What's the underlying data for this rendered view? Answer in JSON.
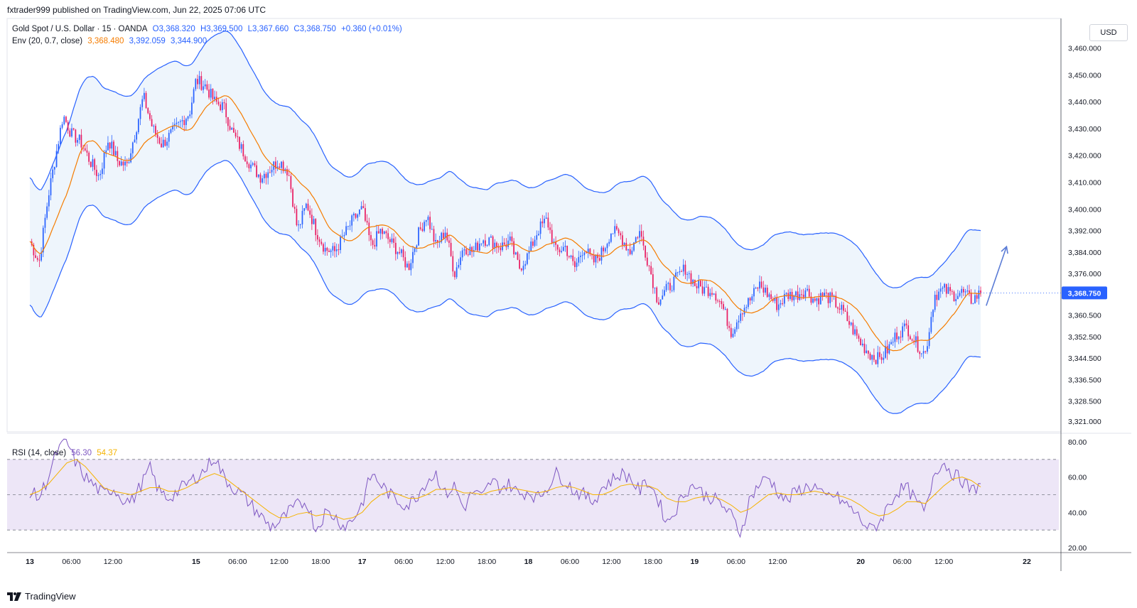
{
  "header": {
    "publish_line": "fxtrader999 published on TradingView.com, Jun 22, 2025 07:06 UTC"
  },
  "legend_main": {
    "symbol": "Gold Spot / U.S. Dollar · 15 · OANDA",
    "open": "O3,368.320",
    "high": "H3,369.500",
    "low": "L3,367.660",
    "close": "C3,368.750",
    "change": "+0.360 (+0.01%)"
  },
  "legend_env": {
    "label": "Env (20, 0.7, close)",
    "basis": "3,368.480",
    "upper": "3,392.059",
    "lower": "3,344.900"
  },
  "legend_rsi": {
    "label": "RSI (14, close)",
    "rsi": "56.30",
    "ma": "54.37"
  },
  "price_axis": {
    "currency": "USD",
    "last_price_label": "3,368.750",
    "last_price_color": "#2962ff"
  },
  "footer": {
    "brand": "TradingView"
  },
  "colors": {
    "up_candle": "#2962ff",
    "down_candle": "#e91e63",
    "envelope_line": "#2962ff",
    "envelope_fill": "#eef5fc",
    "basis_line": "#f57c00",
    "rsi_line": "#7e57c2",
    "rsi_ma": "#f5b300",
    "rsi_band": "#ede6f7"
  },
  "chart_data": [
    {
      "type": "candlestick",
      "title": "Gold Spot / U.S. Dollar · 15 · OANDA",
      "ylim": [
        3317,
        3471
      ],
      "y_ticks": [
        {
          "value": 3460,
          "label": "3,460.000"
        },
        {
          "value": 3450,
          "label": "3,450.000"
        },
        {
          "value": 3440,
          "label": "3,440.000"
        },
        {
          "value": 3430,
          "label": "3,430.000"
        },
        {
          "value": 3420,
          "label": "3,420.000"
        },
        {
          "value": 3410,
          "label": "3,410.000"
        },
        {
          "value": 3400,
          "label": "3,400.000"
        },
        {
          "value": 3392,
          "label": "3,392.000"
        },
        {
          "value": 3384,
          "label": "3,384.000"
        },
        {
          "value": 3376,
          "label": "3,376.000"
        },
        {
          "value": 3360.5,
          "label": "3,360.500"
        },
        {
          "value": 3352.5,
          "label": "3,352.500"
        },
        {
          "value": 3344.5,
          "label": "3,344.500"
        },
        {
          "value": 3336.5,
          "label": "3,336.500"
        },
        {
          "value": 3328.5,
          "label": "3,328.500"
        },
        {
          "value": 3321,
          "label": "3,321.000"
        }
      ],
      "x_ticks": [
        {
          "t": 0.0,
          "label": "13"
        },
        {
          "t": 0.045,
          "label": "06:00"
        },
        {
          "t": 0.09,
          "label": "12:00"
        },
        {
          "t": 0.18,
          "label": "15"
        },
        {
          "t": 0.225,
          "label": "06:00"
        },
        {
          "t": 0.27,
          "label": "12:00"
        },
        {
          "t": 0.315,
          "label": "18:00"
        },
        {
          "t": 0.36,
          "label": "17"
        },
        {
          "t": 0.405,
          "label": "06:00"
        },
        {
          "t": 0.45,
          "label": "12:00"
        },
        {
          "t": 0.495,
          "label": "18:00"
        },
        {
          "t": 0.54,
          "label": "18"
        },
        {
          "t": 0.585,
          "label": "06:00"
        },
        {
          "t": 0.63,
          "label": "12:00"
        },
        {
          "t": 0.675,
          "label": "18:00"
        },
        {
          "t": 0.72,
          "label": "19"
        },
        {
          "t": 0.765,
          "label": "06:00"
        },
        {
          "t": 0.81,
          "label": "12:00"
        },
        {
          "t": 0.9,
          "label": "20"
        },
        {
          "t": 0.945,
          "label": "06:00"
        },
        {
          "t": 0.99,
          "label": "12:00"
        },
        {
          "t": 1.08,
          "label": "22"
        }
      ],
      "close_path": [
        [
          0.0,
          3388
        ],
        [
          0.01,
          3380
        ],
        [
          0.02,
          3405
        ],
        [
          0.028,
          3420
        ],
        [
          0.036,
          3435
        ],
        [
          0.045,
          3428
        ],
        [
          0.055,
          3425
        ],
        [
          0.065,
          3418
        ],
        [
          0.075,
          3412
        ],
        [
          0.085,
          3426
        ],
        [
          0.095,
          3418
        ],
        [
          0.105,
          3416
        ],
        [
          0.115,
          3430
        ],
        [
          0.123,
          3442
        ],
        [
          0.133,
          3430
        ],
        [
          0.143,
          3424
        ],
        [
          0.153,
          3428
        ],
        [
          0.163,
          3432
        ],
        [
          0.173,
          3436
        ],
        [
          0.18,
          3448
        ],
        [
          0.19,
          3446
        ],
        [
          0.2,
          3440
        ],
        [
          0.21,
          3438
        ],
        [
          0.22,
          3428
        ],
        [
          0.23,
          3422
        ],
        [
          0.24,
          3416
        ],
        [
          0.25,
          3412
        ],
        [
          0.26,
          3415
        ],
        [
          0.27,
          3418
        ],
        [
          0.28,
          3414
        ],
        [
          0.29,
          3392
        ],
        [
          0.3,
          3402
        ],
        [
          0.31,
          3392
        ],
        [
          0.32,
          3385
        ],
        [
          0.33,
          3384
        ],
        [
          0.34,
          3390
        ],
        [
          0.35,
          3396
        ],
        [
          0.36,
          3400
        ],
        [
          0.37,
          3386
        ],
        [
          0.38,
          3392
        ],
        [
          0.39,
          3388
        ],
        [
          0.4,
          3384
        ],
        [
          0.41,
          3378
        ],
        [
          0.42,
          3390
        ],
        [
          0.43,
          3398
        ],
        [
          0.44,
          3386
        ],
        [
          0.45,
          3392
        ],
        [
          0.46,
          3376
        ],
        [
          0.47,
          3386
        ],
        [
          0.48,
          3384
        ],
        [
          0.49,
          3389
        ],
        [
          0.5,
          3388
        ],
        [
          0.51,
          3386
        ],
        [
          0.52,
          3388
        ],
        [
          0.53,
          3378
        ],
        [
          0.54,
          3383
        ],
        [
          0.55,
          3392
        ],
        [
          0.56,
          3396
        ],
        [
          0.57,
          3384
        ],
        [
          0.58,
          3386
        ],
        [
          0.59,
          3378
        ],
        [
          0.6,
          3386
        ],
        [
          0.61,
          3380
        ],
        [
          0.62,
          3384
        ],
        [
          0.63,
          3392
        ],
        [
          0.64,
          3390
        ],
        [
          0.65,
          3384
        ],
        [
          0.66,
          3392
        ],
        [
          0.67,
          3380
        ],
        [
          0.68,
          3366
        ],
        [
          0.69,
          3370
        ],
        [
          0.7,
          3374
        ],
        [
          0.71,
          3378
        ],
        [
          0.72,
          3372
        ],
        [
          0.73,
          3370
        ],
        [
          0.74,
          3370
        ],
        [
          0.75,
          3364
        ],
        [
          0.76,
          3354
        ],
        [
          0.77,
          3362
        ],
        [
          0.78,
          3366
        ],
        [
          0.79,
          3372
        ],
        [
          0.8,
          3368
        ],
        [
          0.81,
          3364
        ],
        [
          0.82,
          3368
        ],
        [
          0.83,
          3368
        ],
        [
          0.84,
          3370
        ],
        [
          0.85,
          3366
        ],
        [
          0.86,
          3368
        ],
        [
          0.87,
          3366
        ],
        [
          0.88,
          3362
        ],
        [
          0.89,
          3356
        ],
        [
          0.9,
          3350
        ],
        [
          0.91,
          3346
        ],
        [
          0.92,
          3344
        ],
        [
          0.93,
          3348
        ],
        [
          0.94,
          3354
        ],
        [
          0.95,
          3356
        ],
        [
          0.96,
          3350
        ],
        [
          0.97,
          3346
        ],
        [
          0.98,
          3368
        ],
        [
          0.99,
          3370
        ],
        [
          1.0,
          3368
        ],
        [
          1.01,
          3369
        ],
        [
          1.02,
          3366
        ],
        [
          1.03,
          3368.75
        ]
      ],
      "envelope_pct": 0.7,
      "arrow": {
        "from": [
          1.036,
          3364
        ],
        "to": [
          1.058,
          3386
        ]
      }
    },
    {
      "type": "line",
      "title": "RSI (14, close)",
      "ylim": [
        18,
        84
      ],
      "y_ticks": [
        {
          "value": 80,
          "label": "80.00"
        },
        {
          "value": 60,
          "label": "60.00"
        },
        {
          "value": 40,
          "label": "40.00"
        },
        {
          "value": 20,
          "label": "20.00"
        }
      ],
      "band": [
        30,
        70
      ],
      "mid": 50,
      "series": [
        {
          "name": "RSI",
          "values": [
            52,
            48,
            60,
            75,
            80,
            68,
            60,
            55,
            50,
            54,
            48,
            46,
            55,
            65,
            52,
            48,
            52,
            56,
            60,
            64,
            72,
            60,
            54,
            50,
            44,
            38,
            32,
            34,
            40,
            44,
            46,
            30,
            40,
            38,
            32,
            36,
            45,
            62,
            56,
            50,
            46,
            44,
            50,
            58,
            62,
            50,
            55,
            42,
            52,
            48,
            58,
            54,
            56,
            50,
            52,
            48,
            54,
            62,
            58,
            52,
            50,
            46,
            54,
            58,
            62,
            60,
            52,
            58,
            48,
            34,
            42,
            52,
            56,
            50,
            48,
            44,
            38,
            28,
            48,
            56,
            60,
            52,
            46,
            52,
            54,
            55,
            48,
            50,
            46,
            42,
            36,
            30,
            34,
            44,
            52,
            54,
            46,
            40,
            64,
            68,
            62,
            58,
            52,
            56
          ]
        },
        {
          "name": "RSI-based MA",
          "values": [
            50,
            52,
            56,
            62,
            68,
            70,
            66,
            60,
            54,
            52,
            51,
            50,
            52,
            54,
            54,
            52,
            52,
            54,
            57,
            60,
            62,
            60,
            56,
            52,
            48,
            44,
            40,
            37,
            37,
            39,
            40,
            38,
            39,
            38,
            36,
            37,
            40,
            46,
            50,
            52,
            50,
            48,
            48,
            50,
            53,
            53,
            53,
            51,
            51,
            50,
            52,
            53,
            54,
            53,
            52,
            51,
            52,
            54,
            55,
            54,
            52,
            50,
            50,
            52,
            55,
            56,
            55,
            55,
            53,
            48,
            46,
            46,
            48,
            49,
            49,
            47,
            44,
            40,
            42,
            46,
            50,
            51,
            50,
            50,
            51,
            52,
            51,
            50,
            49,
            47,
            44,
            40,
            38,
            39,
            42,
            46,
            46,
            45,
            50,
            55,
            59,
            60,
            58,
            54.37
          ]
        }
      ]
    }
  ]
}
